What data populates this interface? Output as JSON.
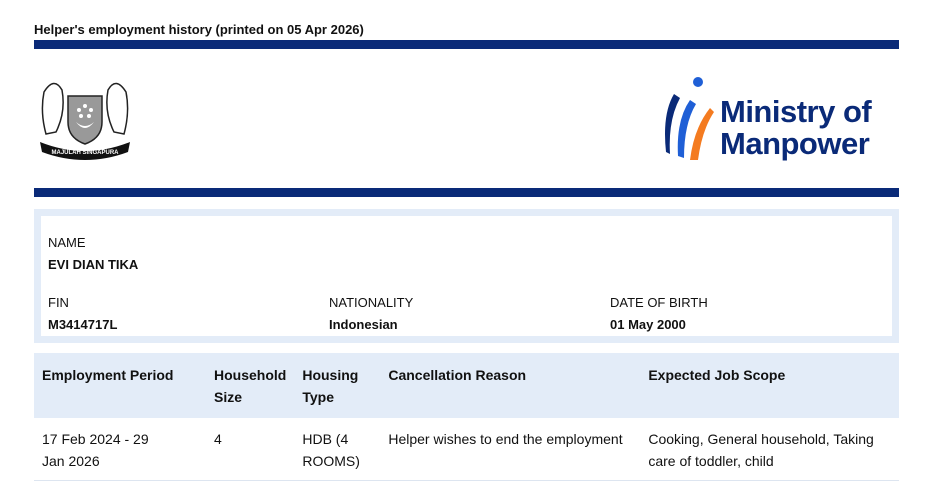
{
  "header": {
    "title": "Helper's employment history (printed on 05 Apr 2026)",
    "crest_motto": "MAJULAH SINGAPURA",
    "ministry_logo": "Ministry of Manpower",
    "ministry_line1": "Ministry of",
    "ministry_line2": "Manpower",
    "brand_color": "#0a2a78",
    "accent_orange": "#f47b20",
    "accent_blue": "#1f5fd6"
  },
  "helper": {
    "name_label": "NAME",
    "name": "EVI DIAN TIKA",
    "fin_label": "FIN",
    "fin": "M3414717L",
    "nationality_label": "NATIONALITY",
    "nationality": "Indonesian",
    "dob_label": "DATE OF BIRTH",
    "dob": "01 May 2000"
  },
  "table": {
    "headers": [
      "Employment Period",
      "Household Size",
      "Housing Type",
      "Cancellation Reason",
      "Expected Job Scope"
    ],
    "rows": [
      [
        "17 Feb 2024 - 29 Jan 2026",
        "4",
        "HDB (4 ROOMS)",
        "Helper wishes to end the employment",
        "Cooking, General household, Taking care of toddler, child"
      ]
    ]
  }
}
